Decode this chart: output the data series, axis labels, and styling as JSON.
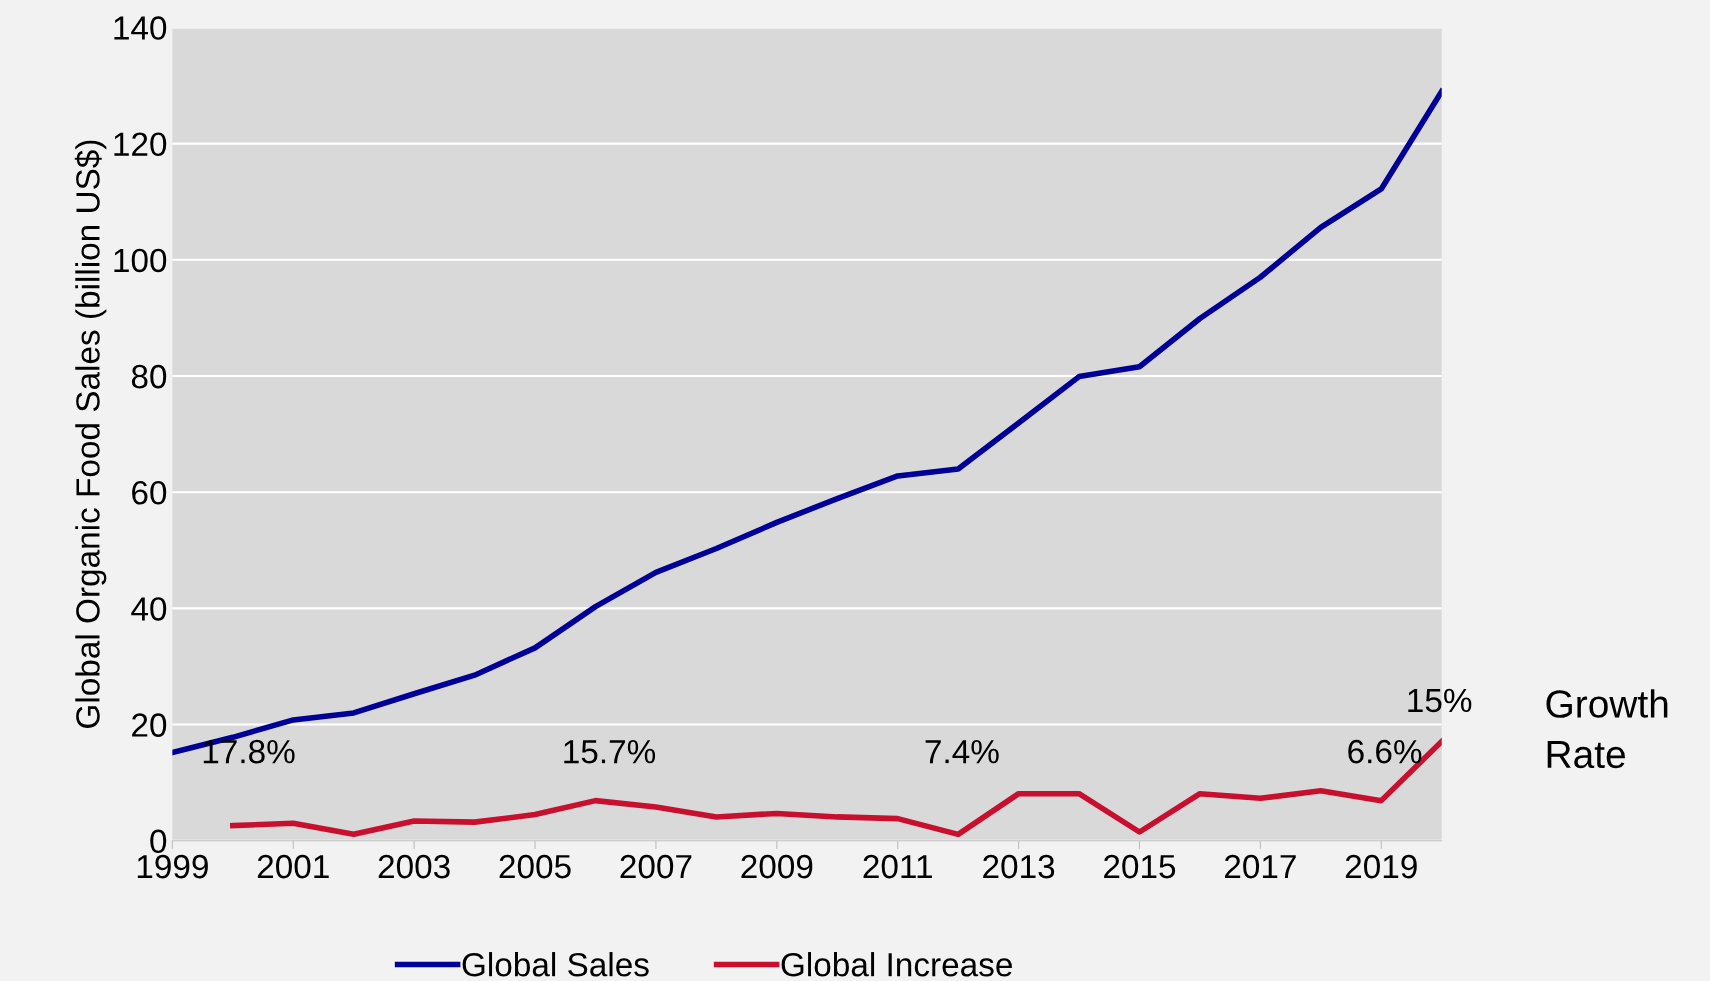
{
  "chart_data": {
    "type": "line",
    "ylabel": "Global Organic Food Sales (billion US$)",
    "x": [
      1999,
      2000,
      2001,
      2002,
      2003,
      2004,
      2005,
      2006,
      2007,
      2008,
      2009,
      2010,
      2011,
      2012,
      2013,
      2014,
      2015,
      2016,
      2017,
      2018,
      2019,
      2020
    ],
    "series": [
      {
        "name": "Global Sales",
        "color": "#000099",
        "values": [
          15.2,
          17.8,
          20.8,
          22,
          25.3,
          28.5,
          33.2,
          40.3,
          46.2,
          50.3,
          54.8,
          58.9,
          62.8,
          64,
          71.9,
          79.9,
          81.6,
          89.9,
          97,
          105.6,
          112.2,
          129
        ]
      },
      {
        "name": "Global Increase",
        "color": "#c8102e",
        "values": [
          null,
          2.6,
          3.0,
          1.1,
          3.4,
          3.2,
          4.5,
          6.9,
          5.8,
          4.1,
          4.7,
          4.1,
          3.8,
          1.1,
          8.1,
          8.1,
          1.5,
          8.1,
          7.3,
          8.6,
          6.9,
          17.1
        ]
      }
    ],
    "xlim": [
      1999,
      2020
    ],
    "xticks": [
      1999,
      2001,
      2003,
      2005,
      2007,
      2009,
      2011,
      2013,
      2015,
      2017,
      2019
    ],
    "ylim": [
      0,
      140
    ],
    "yticks": [
      0,
      20,
      40,
      60,
      80,
      100,
      120,
      140
    ],
    "annotations": [
      "17.8%",
      "15.7%",
      "7.4%",
      "6.6%",
      "15%",
      "Growth\nRate"
    ],
    "grid": "y",
    "legend": "bottom",
    "marker": "none",
    "line_style": "solid"
  }
}
